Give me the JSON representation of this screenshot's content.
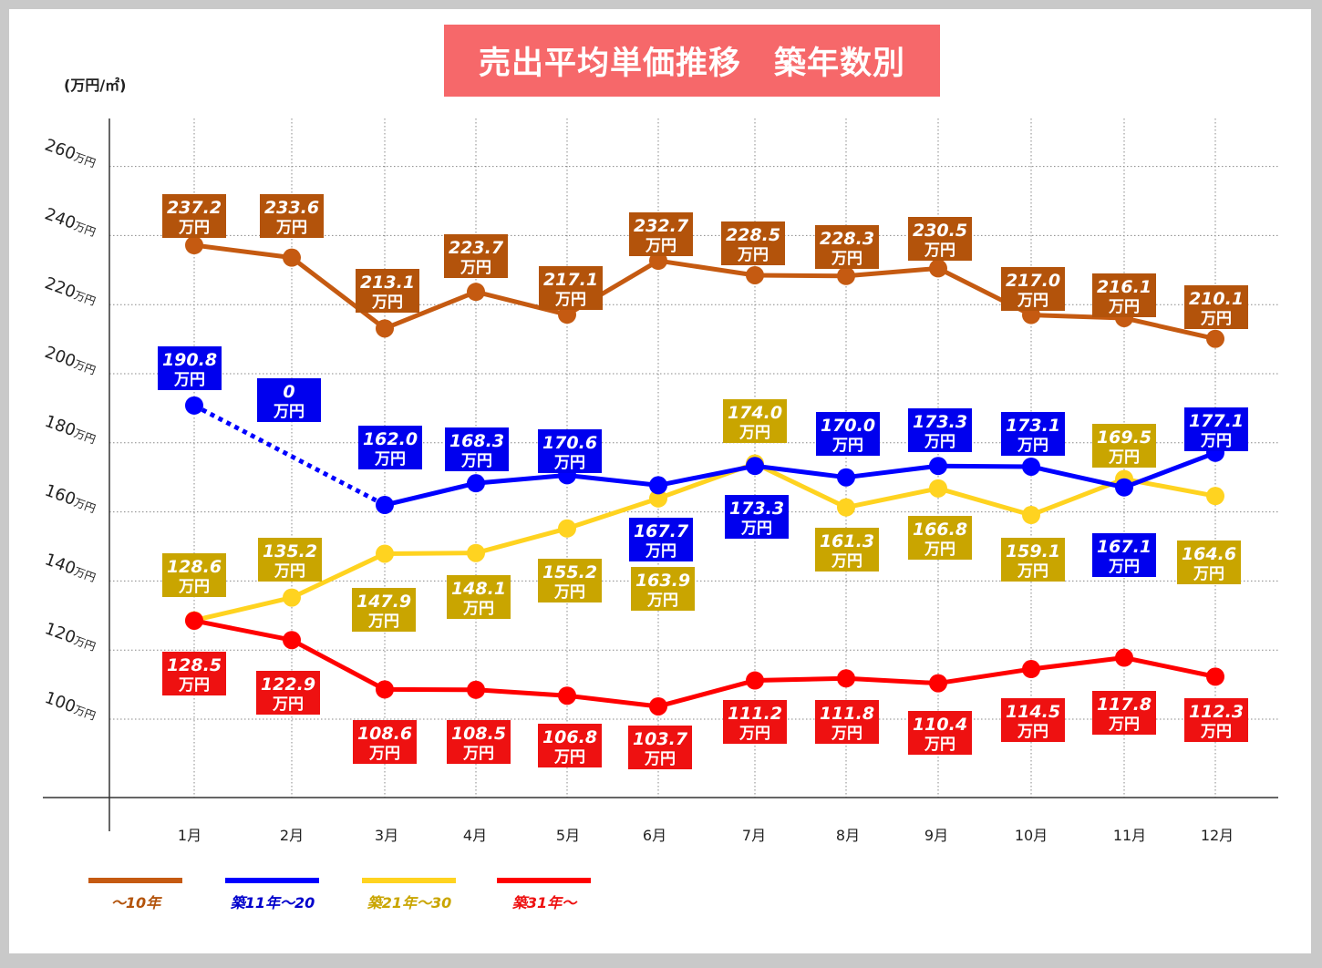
{
  "title": "売出平均単価推移　築年数別",
  "unit_label": "(万円/㎡)",
  "chart_data": {
    "type": "line",
    "title": "売出平均単価推移　築年数別",
    "ylabel": "(万円/㎡)",
    "xlabel": "",
    "ylim": [
      80,
      270
    ],
    "grid": true,
    "legend_position": "bottom-left",
    "categories": [
      "1月",
      "2月",
      "3月",
      "4月",
      "5月",
      "6月",
      "7月",
      "8月",
      "9月",
      "10月",
      "11月",
      "12月"
    ],
    "y_ticks": [
      100,
      120,
      140,
      160,
      180,
      200,
      220,
      240,
      260
    ],
    "y_tick_suffix": "万円",
    "value_unit": "万円",
    "series": [
      {
        "name": "～10年",
        "color": "#c55a11",
        "values": [
          237.2,
          233.6,
          213.1,
          223.7,
          217.1,
          232.7,
          228.5,
          228.3,
          230.5,
          217.0,
          216.1,
          210.1
        ],
        "labels": [
          "237.2",
          "233.6",
          "213.1",
          "223.7",
          "217.1",
          "232.7",
          "228.5",
          "228.3",
          "230.5",
          "217.0",
          "216.1",
          "210.1"
        ]
      },
      {
        "name": "築11年～20",
        "color": "#0000ff",
        "values": [
          190.8,
          0,
          162.0,
          168.3,
          170.6,
          167.7,
          173.3,
          170.0,
          173.3,
          173.1,
          167.1,
          177.1
        ],
        "labels": [
          "190.8",
          "0",
          "162.0",
          "168.3",
          "170.6",
          "167.7",
          "173.3",
          "170.0",
          "173.3",
          "173.1",
          "167.1",
          "177.1"
        ]
      },
      {
        "name": "築21年～30",
        "color": "#ffd320",
        "values": [
          128.6,
          135.2,
          147.9,
          148.1,
          155.2,
          163.9,
          174.0,
          161.3,
          166.8,
          159.1,
          169.5,
          164.6
        ],
        "labels": [
          "128.6",
          "135.2",
          "147.9",
          "148.1",
          "155.2",
          "163.9",
          "174.0",
          "161.3",
          "166.8",
          "159.1",
          "169.5",
          "164.6"
        ]
      },
      {
        "name": "築31年～",
        "color": "#ff0000",
        "values": [
          128.5,
          122.9,
          108.6,
          108.5,
          106.8,
          103.7,
          111.2,
          111.8,
          110.4,
          114.5,
          117.8,
          112.3
        ],
        "labels": [
          "128.5",
          "122.9",
          "108.6",
          "108.5",
          "106.8",
          "103.7",
          "111.2",
          "111.8",
          "110.4",
          "114.5",
          "117.8",
          "112.3"
        ]
      }
    ],
    "label_box_colors": {
      "～10年": "#b3530b",
      "築11年～20": "#0000ee",
      "築21年～30": "#c9a500",
      "築31年～": "#ee1111"
    },
    "legend_text_colors": {
      "～10年": "#b3530b",
      "築11年～20": "#0000cc",
      "築21年～30": "#c9a500",
      "築31年～": "#ee1111"
    }
  }
}
